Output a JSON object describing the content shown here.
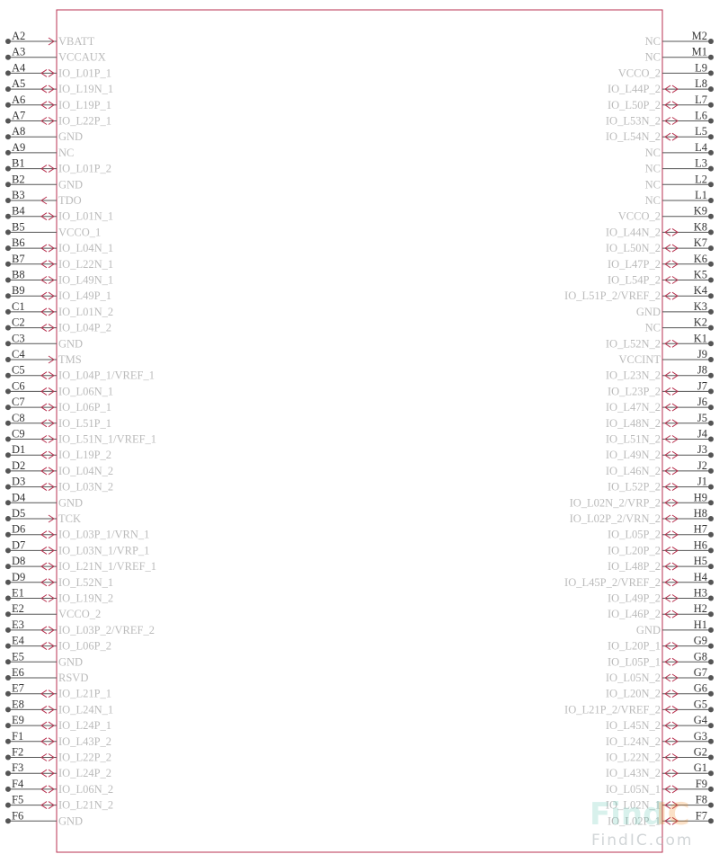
{
  "watermark": {
    "logo_main": "Find",
    "logo_accent": "IC",
    "url": "FindIC.com"
  },
  "colors": {
    "body_outline": "#b83250",
    "pin_line": "#555555",
    "pin_name": "#bbbbbb",
    "arrow": "#b83250"
  },
  "left_pins": [
    {
      "num": "A2",
      "name": "VBATT",
      "dir": "in"
    },
    {
      "num": "A3",
      "name": "VCCAUX",
      "dir": "none"
    },
    {
      "num": "A4",
      "name": "IO_L01P_1",
      "dir": "bidir"
    },
    {
      "num": "A5",
      "name": "IO_L19N_1",
      "dir": "bidir"
    },
    {
      "num": "A6",
      "name": "IO_L19P_1",
      "dir": "bidir"
    },
    {
      "num": "A7",
      "name": "IO_L22P_1",
      "dir": "bidir"
    },
    {
      "num": "A8",
      "name": "GND",
      "dir": "none"
    },
    {
      "num": "A9",
      "name": "NC",
      "dir": "none"
    },
    {
      "num": "B1",
      "name": "IO_L01P_2",
      "dir": "bidir"
    },
    {
      "num": "B2",
      "name": "GND",
      "dir": "none"
    },
    {
      "num": "B3",
      "name": "TDO",
      "dir": "out"
    },
    {
      "num": "B4",
      "name": "IO_L01N_1",
      "dir": "bidir"
    },
    {
      "num": "B5",
      "name": "VCCO_1",
      "dir": "none"
    },
    {
      "num": "B6",
      "name": "IO_L04N_1",
      "dir": "bidir"
    },
    {
      "num": "B7",
      "name": "IO_L22N_1",
      "dir": "bidir"
    },
    {
      "num": "B8",
      "name": "IO_L49N_1",
      "dir": "bidir"
    },
    {
      "num": "B9",
      "name": "IO_L49P_1",
      "dir": "bidir"
    },
    {
      "num": "C1",
      "name": "IO_L01N_2",
      "dir": "bidir"
    },
    {
      "num": "C2",
      "name": "IO_L04P_2",
      "dir": "bidir"
    },
    {
      "num": "C3",
      "name": "GND",
      "dir": "none"
    },
    {
      "num": "C4",
      "name": "TMS",
      "dir": "in"
    },
    {
      "num": "C5",
      "name": "IO_L04P_1/VREF_1",
      "dir": "bidir"
    },
    {
      "num": "C6",
      "name": "IO_L06N_1",
      "dir": "bidir"
    },
    {
      "num": "C7",
      "name": "IO_L06P_1",
      "dir": "bidir"
    },
    {
      "num": "C8",
      "name": "IO_L51P_1",
      "dir": "bidir"
    },
    {
      "num": "C9",
      "name": "IO_L51N_1/VREF_1",
      "dir": "bidir"
    },
    {
      "num": "D1",
      "name": "IO_L19P_2",
      "dir": "bidir"
    },
    {
      "num": "D2",
      "name": "IO_L04N_2",
      "dir": "bidir"
    },
    {
      "num": "D3",
      "name": "IO_L03N_2",
      "dir": "bidir"
    },
    {
      "num": "D4",
      "name": "GND",
      "dir": "none"
    },
    {
      "num": "D5",
      "name": "TCK",
      "dir": "in"
    },
    {
      "num": "D6",
      "name": "IO_L03P_1/VRN_1",
      "dir": "bidir"
    },
    {
      "num": "D7",
      "name": "IO_L03N_1/VRP_1",
      "dir": "bidir"
    },
    {
      "num": "D8",
      "name": "IO_L21N_1/VREF_1",
      "dir": "bidir"
    },
    {
      "num": "D9",
      "name": "IO_L52N_1",
      "dir": "bidir"
    },
    {
      "num": "E1",
      "name": "IO_L19N_2",
      "dir": "bidir"
    },
    {
      "num": "E2",
      "name": "VCCO_2",
      "dir": "none"
    },
    {
      "num": "E3",
      "name": "IO_L03P_2/VREF_2",
      "dir": "bidir"
    },
    {
      "num": "E4",
      "name": "IO_L06P_2",
      "dir": "bidir"
    },
    {
      "num": "E5",
      "name": "GND",
      "dir": "none"
    },
    {
      "num": "E6",
      "name": "RSVD",
      "dir": "none"
    },
    {
      "num": "E7",
      "name": "IO_L21P_1",
      "dir": "bidir"
    },
    {
      "num": "E8",
      "name": "IO_L24N_1",
      "dir": "bidir"
    },
    {
      "num": "E9",
      "name": "IO_L24P_1",
      "dir": "bidir"
    },
    {
      "num": "F1",
      "name": "IO_L43P_2",
      "dir": "bidir"
    },
    {
      "num": "F2",
      "name": "IO_L22P_2",
      "dir": "bidir"
    },
    {
      "num": "F3",
      "name": "IO_L24P_2",
      "dir": "bidir"
    },
    {
      "num": "F4",
      "name": "IO_L06N_2",
      "dir": "bidir"
    },
    {
      "num": "F5",
      "name": "IO_L21N_2",
      "dir": "bidir"
    },
    {
      "num": "F6",
      "name": "GND",
      "dir": "none"
    }
  ],
  "right_pins": [
    {
      "num": "M2",
      "name": "NC",
      "dir": "none"
    },
    {
      "num": "M1",
      "name": "NC",
      "dir": "none"
    },
    {
      "num": "L9",
      "name": "VCCO_2",
      "dir": "none"
    },
    {
      "num": "L8",
      "name": "IO_L44P_2",
      "dir": "bidir"
    },
    {
      "num": "L7",
      "name": "IO_L50P_2",
      "dir": "bidir"
    },
    {
      "num": "L6",
      "name": "IO_L53N_2",
      "dir": "bidir"
    },
    {
      "num": "L5",
      "name": "IO_L54N_2",
      "dir": "bidir"
    },
    {
      "num": "L4",
      "name": "NC",
      "dir": "none"
    },
    {
      "num": "L3",
      "name": "NC",
      "dir": "none"
    },
    {
      "num": "L2",
      "name": "NC",
      "dir": "none"
    },
    {
      "num": "L1",
      "name": "NC",
      "dir": "none"
    },
    {
      "num": "K9",
      "name": "VCCO_2",
      "dir": "none"
    },
    {
      "num": "K8",
      "name": "IO_L44N_2",
      "dir": "bidir"
    },
    {
      "num": "K7",
      "name": "IO_L50N_2",
      "dir": "bidir"
    },
    {
      "num": "K6",
      "name": "IO_L47P_2",
      "dir": "bidir"
    },
    {
      "num": "K5",
      "name": "IO_L54P_2",
      "dir": "bidir"
    },
    {
      "num": "K4",
      "name": "IO_L51P_2/VREF_2",
      "dir": "bidir"
    },
    {
      "num": "K3",
      "name": "GND",
      "dir": "none"
    },
    {
      "num": "K2",
      "name": "NC",
      "dir": "none"
    },
    {
      "num": "K1",
      "name": "IO_L52N_2",
      "dir": "bidir"
    },
    {
      "num": "J9",
      "name": "VCCINT",
      "dir": "none"
    },
    {
      "num": "J8",
      "name": "IO_L23N_2",
      "dir": "bidir"
    },
    {
      "num": "J7",
      "name": "IO_L23P_2",
      "dir": "bidir"
    },
    {
      "num": "J6",
      "name": "IO_L47N_2",
      "dir": "bidir"
    },
    {
      "num": "J5",
      "name": "IO_L48N_2",
      "dir": "bidir"
    },
    {
      "num": "J4",
      "name": "IO_L51N_2",
      "dir": "bidir"
    },
    {
      "num": "J3",
      "name": "IO_L49N_2",
      "dir": "bidir"
    },
    {
      "num": "J2",
      "name": "IO_L46N_2",
      "dir": "bidir"
    },
    {
      "num": "J1",
      "name": "IO_L52P_2",
      "dir": "bidir"
    },
    {
      "num": "H9",
      "name": "IO_L02N_2/VRP_2",
      "dir": "bidir"
    },
    {
      "num": "H8",
      "name": "IO_L02P_2/VRN_2",
      "dir": "bidir"
    },
    {
      "num": "H7",
      "name": "IO_L05P_2",
      "dir": "bidir"
    },
    {
      "num": "H6",
      "name": "IO_L20P_2",
      "dir": "bidir"
    },
    {
      "num": "H5",
      "name": "IO_L48P_2",
      "dir": "bidir"
    },
    {
      "num": "H4",
      "name": "IO_L45P_2/VREF_2",
      "dir": "bidir"
    },
    {
      "num": "H3",
      "name": "IO_L49P_2",
      "dir": "bidir"
    },
    {
      "num": "H2",
      "name": "IO_L46P_2",
      "dir": "bidir"
    },
    {
      "num": "H1",
      "name": "GND",
      "dir": "none"
    },
    {
      "num": "G9",
      "name": "IO_L20P_1",
      "dir": "bidir"
    },
    {
      "num": "G8",
      "name": "IO_L05P_1",
      "dir": "bidir"
    },
    {
      "num": "G7",
      "name": "IO_L05N_2",
      "dir": "bidir"
    },
    {
      "num": "G6",
      "name": "IO_L20N_2",
      "dir": "bidir"
    },
    {
      "num": "G5",
      "name": "IO_L21P_2/VREF_2",
      "dir": "bidir"
    },
    {
      "num": "G4",
      "name": "IO_L45N_2",
      "dir": "bidir"
    },
    {
      "num": "G3",
      "name": "IO_L24N_2",
      "dir": "bidir"
    },
    {
      "num": "G2",
      "name": "IO_L22N_2",
      "dir": "bidir"
    },
    {
      "num": "G1",
      "name": "IO_L43N_2",
      "dir": "bidir"
    },
    {
      "num": "F9",
      "name": "IO_L05N_1",
      "dir": "bidir"
    },
    {
      "num": "F8",
      "name": "IO_L02N_1",
      "dir": "bidir"
    },
    {
      "num": "F7",
      "name": "IO_L02P_1",
      "dir": "bidir"
    }
  ]
}
